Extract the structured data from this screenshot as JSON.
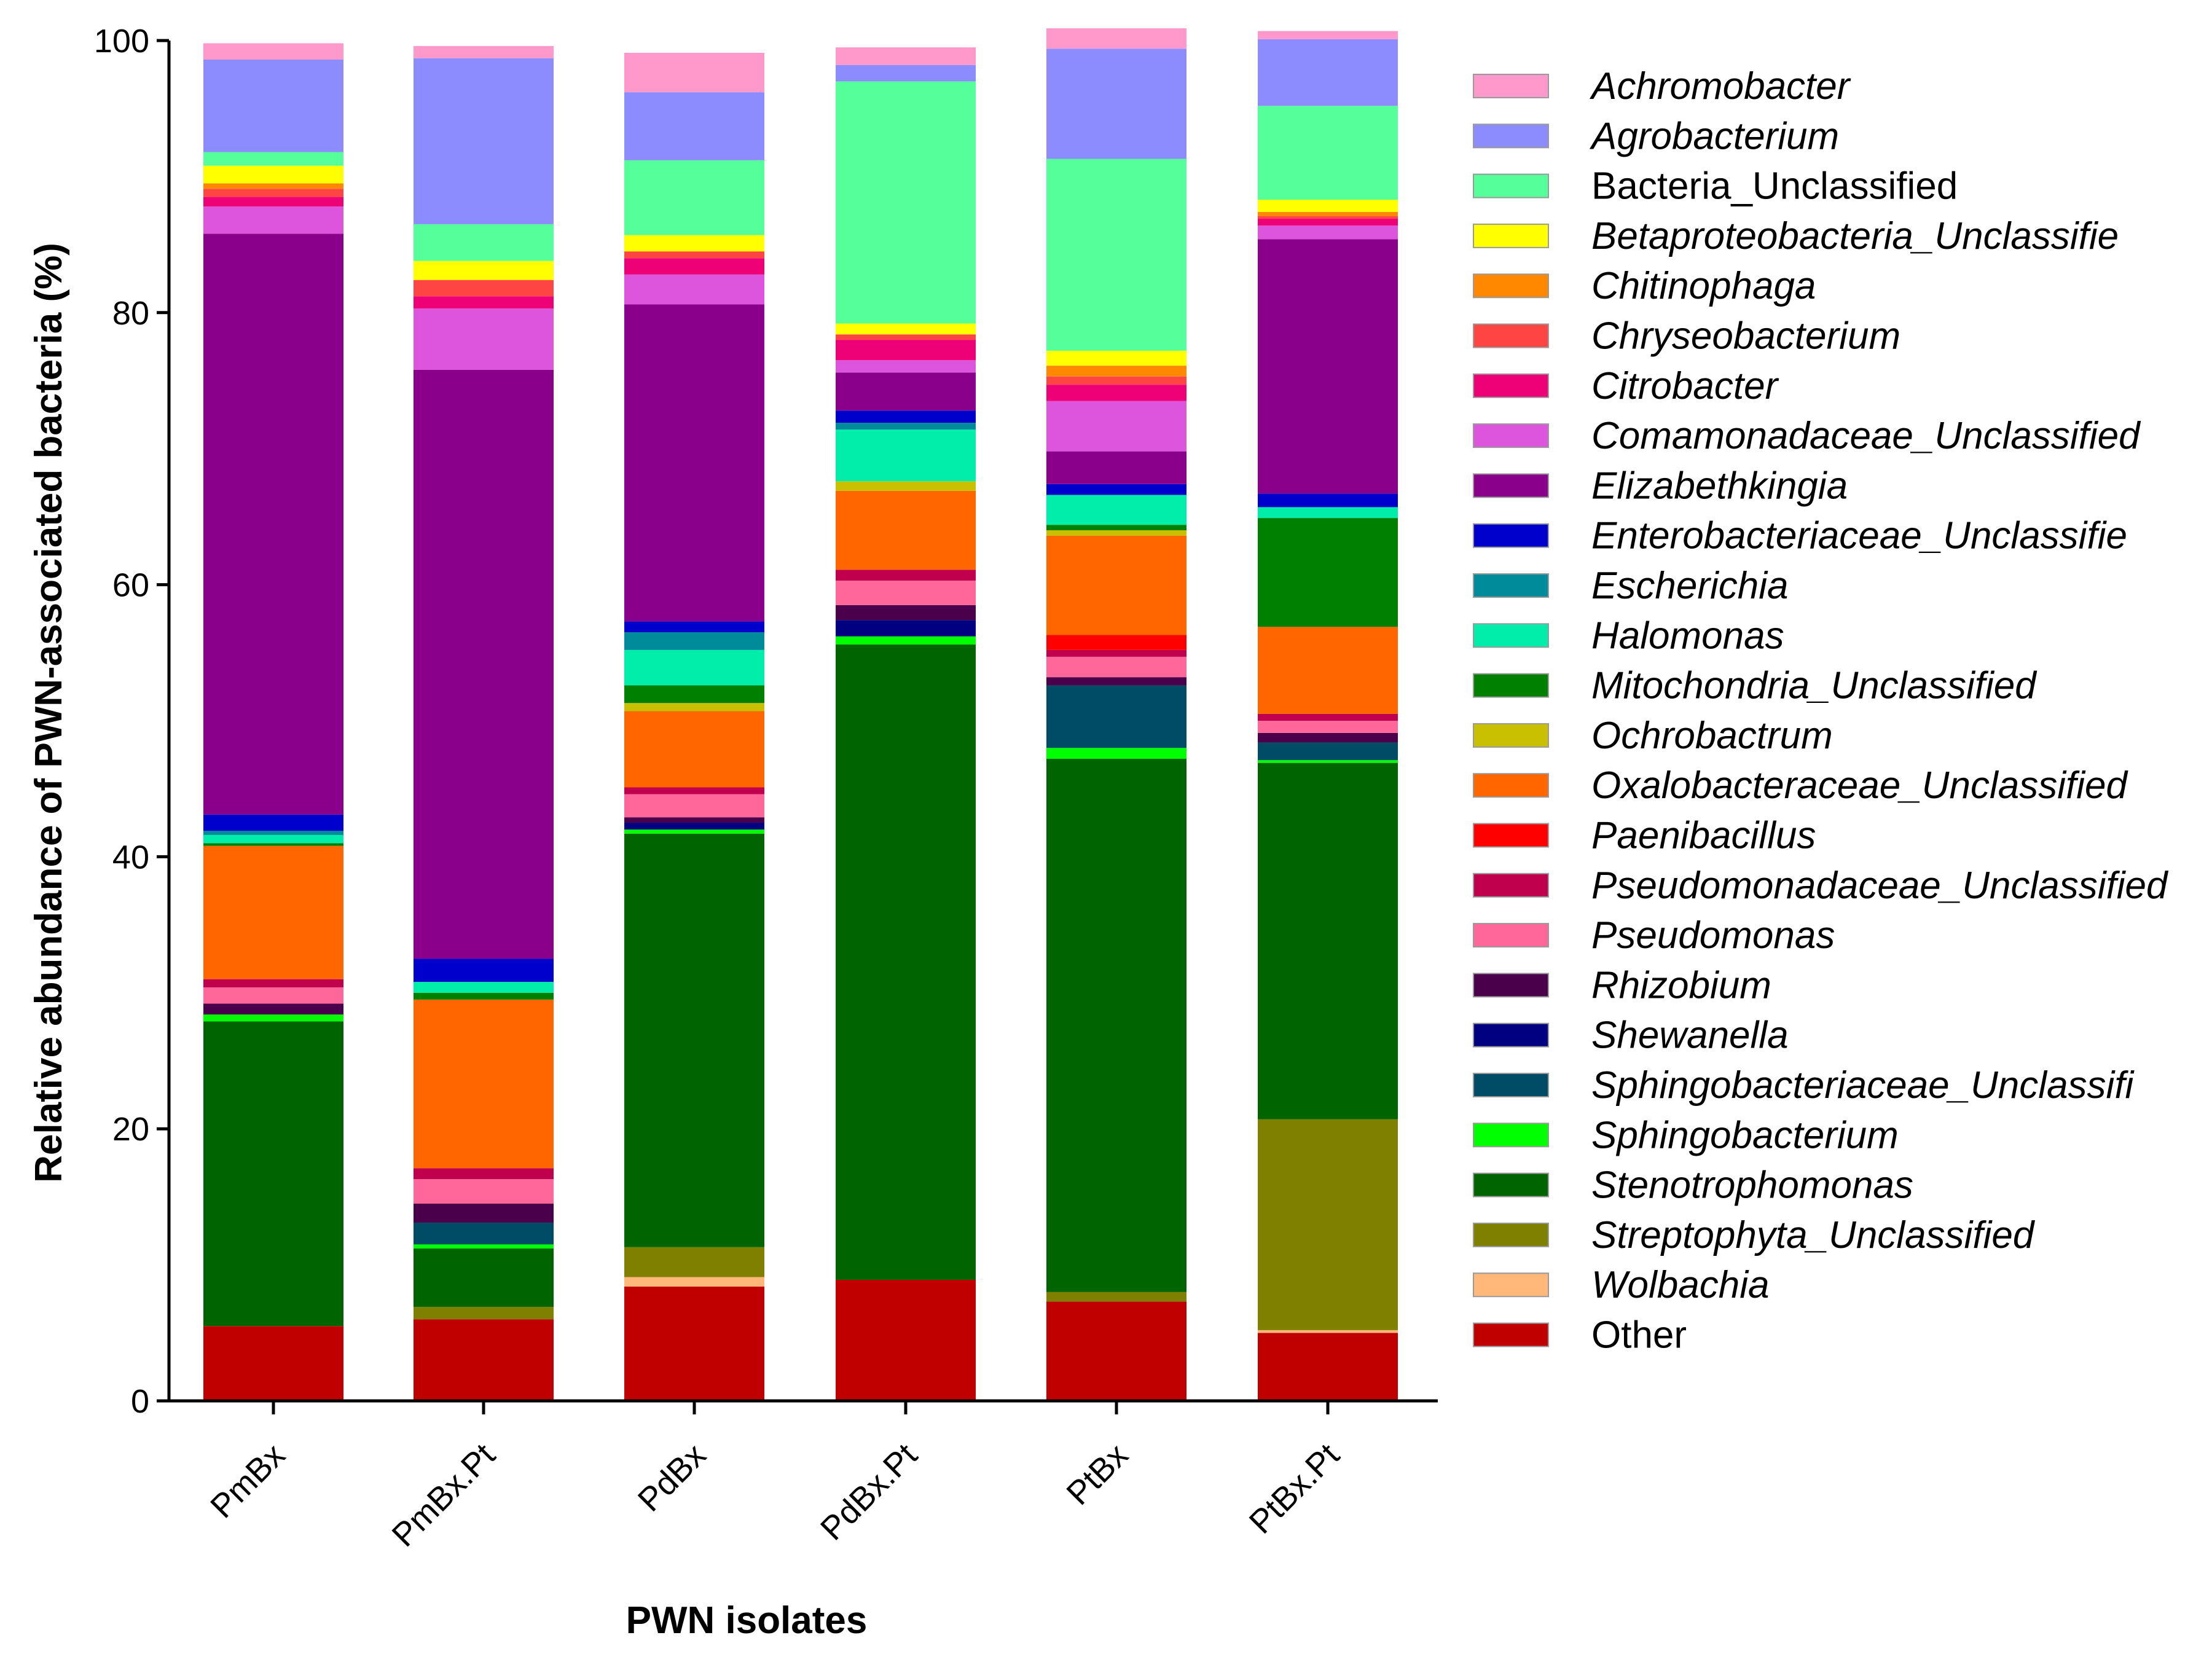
{
  "chart_data": {
    "type": "bar",
    "stacked": true,
    "title": "",
    "xlabel": "PWN isolates",
    "ylabel": "Relative abundance of PWN-associated bacteria (%)",
    "ylim": [
      0,
      100
    ],
    "yticks": [
      "0",
      "20",
      "40",
      "60",
      "80",
      "100"
    ],
    "legend_position": "right",
    "categories": [
      "PmBx",
      "PmBx.Pt",
      "PdBx",
      "PdBx.Pt",
      "PtBx",
      "PtBx.Pt"
    ],
    "series": [
      {
        "name": "Other",
        "italic": false,
        "color": "#C00000",
        "values": [
          5.5,
          6.0,
          8.4,
          8.9,
          7.3,
          5.0
        ]
      },
      {
        "name": "Wolbachia",
        "italic": true,
        "color": "#FFB77A",
        "values": [
          0,
          0,
          0.7,
          0,
          0,
          0.2
        ]
      },
      {
        "name": "Streptophyta_Unclassified",
        "italic": true,
        "color": "#808000",
        "values": [
          0,
          0.9,
          2.2,
          0,
          0.7,
          15.5
        ]
      },
      {
        "name": "Stenotrophomonas",
        "italic": true,
        "color": "#006400",
        "values": [
          22.4,
          4.3,
          30.4,
          46.7,
          39.2,
          26.2
        ]
      },
      {
        "name": "Sphingobacterium",
        "italic": true,
        "color": "#00FF00",
        "values": [
          0.5,
          0.3,
          0.3,
          0.6,
          0.8,
          0.2
        ]
      },
      {
        "name": "Sphingobacteriaceae_Unclassifi",
        "italic": true,
        "color": "#004C66",
        "values": [
          0,
          1.6,
          0,
          0,
          4.6,
          1.3
        ]
      },
      {
        "name": "Shewanella",
        "italic": true,
        "color": "#000080",
        "values": [
          0,
          0,
          0.5,
          1.2,
          0,
          0
        ]
      },
      {
        "name": "Rhizobium",
        "italic": true,
        "color": "#4B004B",
        "values": [
          0.8,
          1.4,
          0.4,
          1.1,
          0.6,
          0.7
        ]
      },
      {
        "name": "Pseudomonas",
        "italic": true,
        "color": "#FF6699",
        "values": [
          1.2,
          1.8,
          1.7,
          1.8,
          1.5,
          0.9
        ]
      },
      {
        "name": "Pseudomonadaceae_Unclassified",
        "italic": true,
        "color": "#C0004D",
        "values": [
          0.6,
          0.8,
          0.5,
          0.8,
          0.5,
          0.5
        ]
      },
      {
        "name": "Paenibacillus",
        "italic": true,
        "color": "#FF0000",
        "values": [
          0,
          0,
          0,
          0,
          1.1,
          0
        ]
      },
      {
        "name": "Oxalobacteraceae_Unclassified",
        "italic": true,
        "color": "#FF6600",
        "values": [
          9.8,
          12.4,
          5.6,
          5.8,
          7.3,
          6.4
        ]
      },
      {
        "name": "Ochrobactrum",
        "italic": true,
        "color": "#C8C000",
        "values": [
          0,
          0,
          0.6,
          0.7,
          0.4,
          0
        ]
      },
      {
        "name": "Mitochondria_Unclassified",
        "italic": true,
        "color": "#008000",
        "values": [
          0.2,
          0.5,
          1.3,
          0,
          0.4,
          8.0
        ]
      },
      {
        "name": "Halomonas",
        "italic": true,
        "color": "#00EEAA",
        "values": [
          0.6,
          0.8,
          2.6,
          3.8,
          2.2,
          0.8
        ]
      },
      {
        "name": "Escherichia",
        "italic": true,
        "color": "#008B9B",
        "values": [
          0.3,
          0,
          1.3,
          0.5,
          0,
          0
        ]
      },
      {
        "name": "Enterobacteriaceae_Unclassifie",
        "italic": true,
        "color": "#0000CD",
        "values": [
          1.2,
          1.7,
          0.8,
          0.9,
          0.8,
          1.0
        ]
      },
      {
        "name": "Elizabethkingia",
        "italic": true,
        "color": "#8B008B",
        "values": [
          42.7,
          43.3,
          23.3,
          2.8,
          2.4,
          18.7
        ]
      },
      {
        "name": "Comamonadaceae_Unclassified",
        "italic": true,
        "color": "#DD55DD",
        "values": [
          2.0,
          4.5,
          2.2,
          0.9,
          3.7,
          1.0
        ]
      },
      {
        "name": "Citrobacter",
        "italic": true,
        "color": "#EE0077",
        "values": [
          0.7,
          0.9,
          1.2,
          1.5,
          1.2,
          0.5
        ]
      },
      {
        "name": "Chryseobacterium",
        "italic": true,
        "color": "#FF4444",
        "values": [
          0.6,
          1.2,
          0.5,
          0.4,
          0.6,
          0.2
        ]
      },
      {
        "name": "Chitinophaga",
        "italic": true,
        "color": "#FF8800",
        "values": [
          0.4,
          0,
          0,
          0,
          0.8,
          0.3
        ]
      },
      {
        "name": "Betaproteobacteria_Unclassifie",
        "italic": true,
        "color": "#FFFF00",
        "values": [
          1.3,
          1.4,
          1.2,
          0.8,
          1.1,
          0.9
        ]
      },
      {
        "name": "Bacteria_Unclassified",
        "italic": false,
        "color": "#55FF99",
        "values": [
          1.0,
          2.7,
          5.5,
          17.8,
          14.1,
          6.9
        ]
      },
      {
        "name": "Agrobacterium",
        "italic": true,
        "color": "#8C8CFF",
        "values": [
          6.8,
          12.2,
          5.0,
          1.2,
          8.1,
          4.9
        ]
      },
      {
        "name": "Achromobacter",
        "italic": true,
        "color": "#FF99CC",
        "values": [
          1.2,
          0.9,
          2.9,
          1.3,
          1.5,
          0.6
        ]
      }
    ]
  }
}
